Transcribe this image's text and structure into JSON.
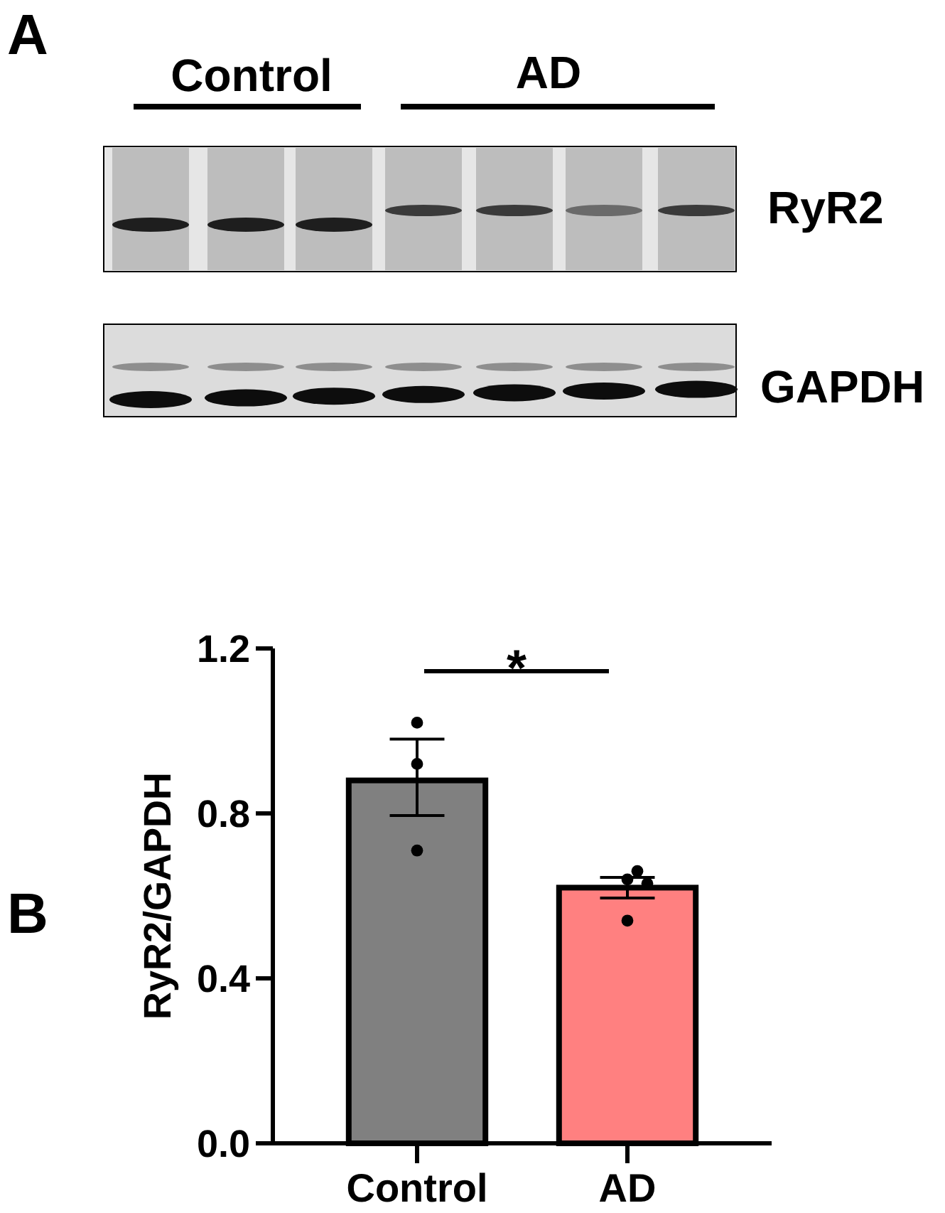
{
  "chart_data": {
    "type": "bar",
    "ylabel": "RyR2/GAPDH",
    "categories": [
      "Control",
      "AD"
    ],
    "series": [
      {
        "values": [
          0.88,
          0.62
        ],
        "colors": [
          "#808080",
          "#ff8080"
        ],
        "errors": [
          [
            0.795,
            0.98
          ],
          0.025
        ]
      },
      {
        "type": "scatter",
        "x": [
          "Control",
          "Control",
          "Control",
          "AD",
          "AD",
          "AD",
          "AD"
        ],
        "values": [
          1.02,
          0.92,
          0.71,
          0.64,
          0.66,
          0.63,
          0.54
        ],
        "color": "#000000",
        "marker": "circle"
      }
    ],
    "ylim": [
      0,
      1.2
    ],
    "yticks": [
      {
        "value": 0,
        "label": "0.0"
      },
      0.4,
      0.8,
      1.2
    ],
    "annotations": [
      "A",
      "Control",
      "AD",
      "RyR2",
      "GAPDH",
      "B",
      "*"
    ]
  }
}
